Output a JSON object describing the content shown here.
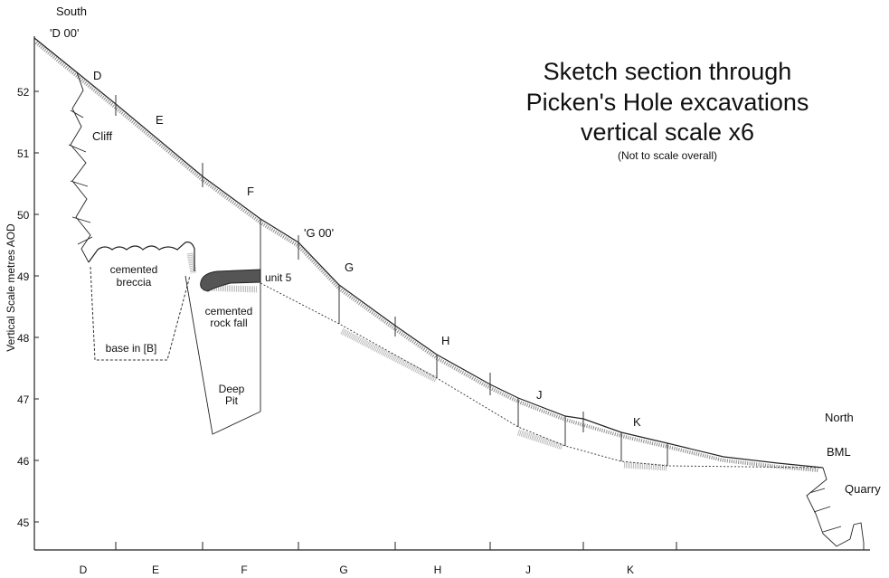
{
  "header": {
    "title_lines": [
      "Sketch section through",
      "Picken's Hole excavations",
      "vertical scale x6"
    ],
    "subtitle": "(Not to scale overall)"
  },
  "axis": {
    "label": "Vertical Scale metres AOD",
    "yticks": [
      45,
      46,
      47,
      48,
      49,
      50,
      51,
      52
    ],
    "sections": [
      "D",
      "E",
      "F",
      "G",
      "H",
      "J",
      "K"
    ]
  },
  "orientation": {
    "south": "South",
    "north": "North"
  },
  "profile_labels": {
    "d00": "'D 00'",
    "g00": "'G 00'",
    "points": [
      "D",
      "E",
      "F",
      "G",
      "H",
      "J",
      "K"
    ]
  },
  "features": {
    "cliff": "Cliff",
    "breccia": [
      "cemented",
      "breccia"
    ],
    "base": "base in [B]",
    "rockfall": [
      "cemented",
      "rock fall"
    ],
    "unit5": "unit 5",
    "pit": [
      "Deep",
      "Pit"
    ],
    "bml": "BML",
    "quarry": "Quarry"
  }
}
